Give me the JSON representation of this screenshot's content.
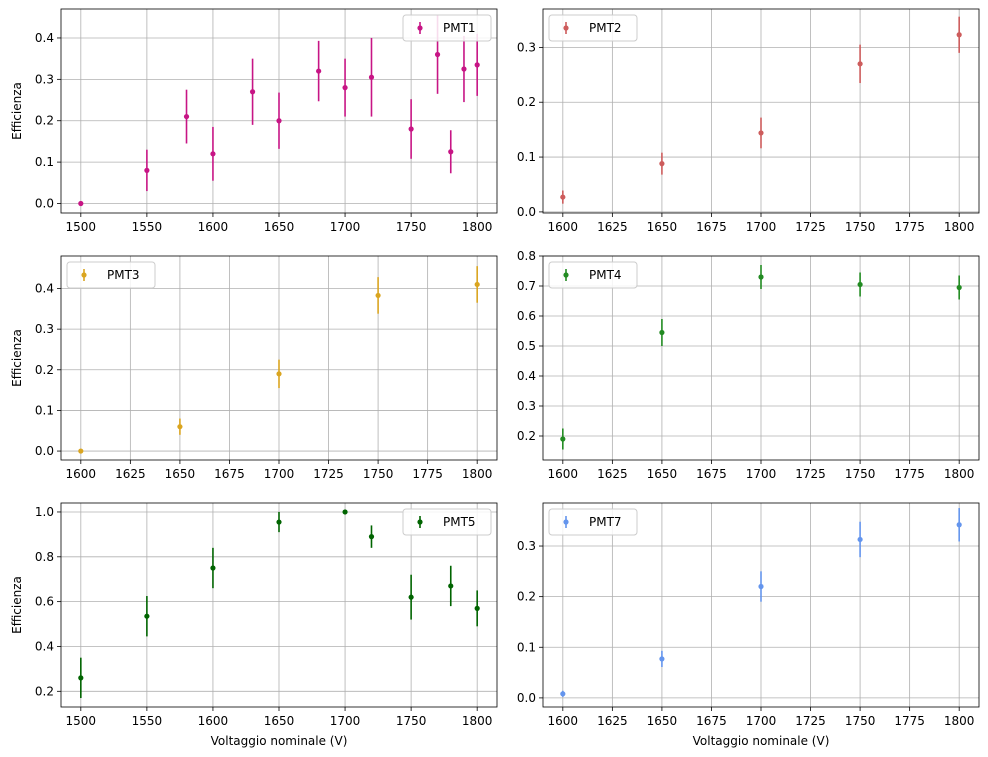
{
  "chart_data": [
    {
      "type": "scatter",
      "series": [
        {
          "name": "PMT1",
          "color": "#c71585",
          "x": [
            1500,
            1550,
            1580,
            1600,
            1630,
            1650,
            1680,
            1700,
            1720,
            1750,
            1770,
            1780,
            1790,
            1800
          ],
          "y": [
            0.0,
            0.08,
            0.21,
            0.12,
            0.27,
            0.2,
            0.32,
            0.28,
            0.305,
            0.18,
            0.36,
            0.125,
            0.325,
            0.335
          ],
          "err": [
            0.0,
            0.05,
            0.065,
            0.065,
            0.08,
            0.068,
            0.073,
            0.07,
            0.095,
            0.072,
            0.095,
            0.052,
            0.08,
            0.075
          ]
        }
      ],
      "xlabel": "",
      "ylabel": "Efficienza",
      "xlim": [
        1485,
        1815
      ],
      "ylim": [
        -0.023,
        0.47
      ],
      "xticks": [
        1500,
        1550,
        1600,
        1650,
        1700,
        1750,
        1800
      ],
      "yticks": [
        0.0,
        0.1,
        0.2,
        0.3,
        0.4
      ],
      "ytick_labels": [
        "0.0",
        "0.1",
        "0.2",
        "0.3",
        "0.4"
      ],
      "grid": true,
      "legend": "upper right"
    },
    {
      "type": "scatter",
      "series": [
        {
          "name": "PMT2",
          "color": "#cd5c5c",
          "x": [
            1600,
            1650,
            1700,
            1750,
            1800
          ],
          "y": [
            0.027,
            0.088,
            0.144,
            0.27,
            0.323
          ],
          "err": [
            0.012,
            0.02,
            0.028,
            0.035,
            0.033
          ]
        }
      ],
      "xlabel": "",
      "ylabel": "",
      "xlim": [
        1590,
        1810
      ],
      "ylim": [
        -0.002,
        0.37
      ],
      "xticks": [
        1600,
        1625,
        1650,
        1675,
        1700,
        1725,
        1750,
        1775,
        1800
      ],
      "yticks": [
        0.0,
        0.1,
        0.2,
        0.3
      ],
      "ytick_labels": [
        "0.0",
        "0.1",
        "0.2",
        "0.3"
      ],
      "grid": true,
      "legend": "upper left"
    },
    {
      "type": "scatter",
      "series": [
        {
          "name": "PMT3",
          "color": "#daa520",
          "x": [
            1600,
            1650,
            1700,
            1750,
            1800
          ],
          "y": [
            0.0,
            0.06,
            0.19,
            0.383,
            0.41
          ],
          "err": [
            0.0,
            0.02,
            0.035,
            0.045,
            0.045
          ]
        }
      ],
      "xlabel": "",
      "ylabel": "Efficienza",
      "xlim": [
        1590,
        1810
      ],
      "ylim": [
        -0.022,
        0.48
      ],
      "xticks": [
        1600,
        1625,
        1650,
        1675,
        1700,
        1725,
        1750,
        1775,
        1800
      ],
      "yticks": [
        0.0,
        0.1,
        0.2,
        0.3,
        0.4
      ],
      "ytick_labels": [
        "0.0",
        "0.1",
        "0.2",
        "0.3",
        "0.4"
      ],
      "grid": true,
      "legend": "upper left"
    },
    {
      "type": "scatter",
      "series": [
        {
          "name": "PMT4",
          "color": "#228b22",
          "x": [
            1600,
            1650,
            1700,
            1750,
            1800
          ],
          "y": [
            0.19,
            0.545,
            0.73,
            0.705,
            0.695
          ],
          "err": [
            0.035,
            0.045,
            0.04,
            0.04,
            0.04
          ]
        }
      ],
      "xlabel": "",
      "ylabel": "",
      "xlim": [
        1590,
        1810
      ],
      "ylim": [
        0.12,
        0.8
      ],
      "xticks": [
        1600,
        1625,
        1650,
        1675,
        1700,
        1725,
        1750,
        1775,
        1800
      ],
      "yticks": [
        0.2,
        0.3,
        0.4,
        0.5,
        0.6,
        0.7,
        0.8
      ],
      "ytick_labels": [
        "0.2",
        "0.3",
        "0.4",
        "0.5",
        "0.6",
        "0.7",
        "0.8"
      ],
      "grid": true,
      "legend": "upper left"
    },
    {
      "type": "scatter",
      "series": [
        {
          "name": "PMT5",
          "color": "#006400",
          "x": [
            1500,
            1550,
            1600,
            1650,
            1700,
            1720,
            1750,
            1780,
            1800
          ],
          "y": [
            0.26,
            0.535,
            0.75,
            0.955,
            1.0,
            0.89,
            0.62,
            0.67,
            0.57
          ],
          "err": [
            0.09,
            0.09,
            0.09,
            0.045,
            0.0,
            0.05,
            0.1,
            0.09,
            0.08
          ]
        }
      ],
      "xlabel": "Voltaggio nominale (V)",
      "ylabel": "Efficienza",
      "xlim": [
        1485,
        1815
      ],
      "ylim": [
        0.13,
        1.04
      ],
      "xticks": [
        1500,
        1550,
        1600,
        1650,
        1700,
        1750,
        1800
      ],
      "yticks": [
        0.2,
        0.4,
        0.6,
        0.8,
        1.0
      ],
      "ytick_labels": [
        "0.2",
        "0.4",
        "0.6",
        "0.8",
        "1.0"
      ],
      "grid": true,
      "legend": "upper right"
    },
    {
      "type": "scatter",
      "series": [
        {
          "name": "PMT7",
          "color": "#6495ed",
          "x": [
            1600,
            1650,
            1700,
            1750,
            1800
          ],
          "y": [
            0.008,
            0.077,
            0.22,
            0.313,
            0.342
          ],
          "err": [
            0.006,
            0.016,
            0.03,
            0.035,
            0.033
          ]
        }
      ],
      "xlabel": "Voltaggio nominale (V)",
      "ylabel": "",
      "xlim": [
        1590,
        1810
      ],
      "ylim": [
        -0.018,
        0.385
      ],
      "xticks": [
        1600,
        1625,
        1650,
        1675,
        1700,
        1725,
        1750,
        1775,
        1800
      ],
      "yticks": [
        0.0,
        0.1,
        0.2,
        0.3
      ],
      "ytick_labels": [
        "0.0",
        "0.1",
        "0.2",
        "0.3"
      ],
      "grid": true,
      "legend": "upper left"
    }
  ]
}
